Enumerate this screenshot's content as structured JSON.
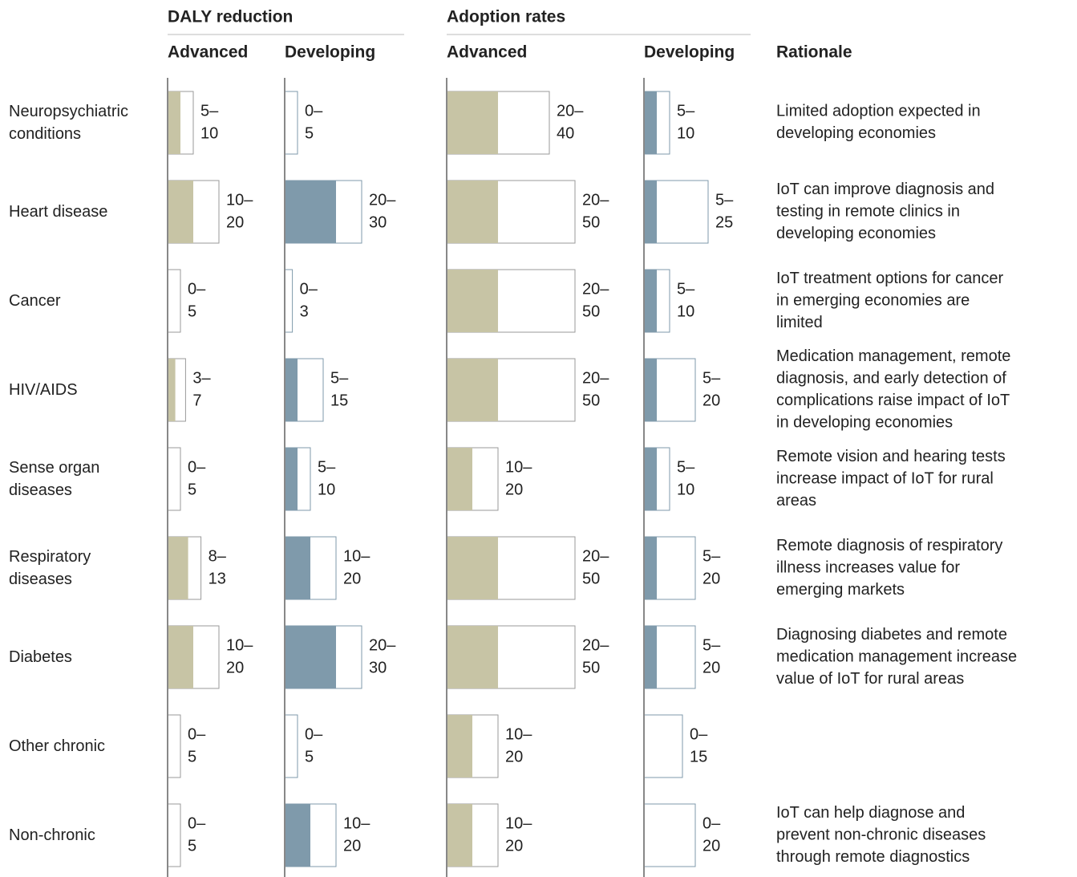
{
  "chart_data": {
    "type": "range-bar",
    "categories": [
      "Neuropsychiatric conditions",
      "Heart disease",
      "Cancer",
      "HIV/AIDS",
      "Sense organ diseases",
      "Respiratory diseases",
      "Diabetes",
      "Other chronic",
      "Non-chronic"
    ],
    "groups": [
      {
        "name": "DALY reduction",
        "series": [
          {
            "name": "Advanced",
            "color": "#c7c4a5",
            "outline": "#9a9a9a",
            "low": [
              5,
              10,
              0,
              3,
              0,
              8,
              10,
              0,
              0
            ],
            "high": [
              10,
              20,
              5,
              7,
              5,
              13,
              20,
              5,
              5
            ],
            "low_labels": [
              "5–",
              "10–",
              "0–",
              "3–",
              "0–",
              "8–",
              "10–",
              "0–",
              "0–"
            ]
          },
          {
            "name": "Developing",
            "color": "#7f9aab",
            "outline": "#7f9aab",
            "low": [
              0,
              20,
              0,
              5,
              5,
              10,
              20,
              0,
              10
            ],
            "high": [
              5,
              30,
              3,
              15,
              10,
              20,
              30,
              5,
              20
            ],
            "low_labels": [
              "0–",
              "20–",
              "0–",
              "5–",
              "5–",
              "10–",
              "20–",
              "0–",
              "10–"
            ]
          }
        ]
      },
      {
        "name": "Adoption rates",
        "series": [
          {
            "name": "Advanced",
            "color": "#c7c4a5",
            "outline": "#9a9a9a",
            "low": [
              20,
              20,
              20,
              20,
              10,
              20,
              20,
              10,
              10
            ],
            "high": [
              40,
              50,
              50,
              50,
              20,
              50,
              50,
              20,
              20
            ],
            "low_labels": [
              "20–",
              "20–",
              "20–",
              "20–",
              "10–",
              "20–",
              "20–",
              "10–",
              "10–"
            ]
          },
          {
            "name": "Developing",
            "color": "#7f9aab",
            "outline": "#7f9aab",
            "low": [
              5,
              5,
              5,
              5,
              5,
              5,
              5,
              0,
              0
            ],
            "high": [
              10,
              25,
              10,
              20,
              10,
              20,
              20,
              15,
              20
            ],
            "low_labels": [
              "5–",
              "5–",
              "5–",
              "5–",
              "5–",
              "5–",
              "5–",
              "0–",
              "0–"
            ]
          }
        ]
      }
    ],
    "rationale_title": "Rationale",
    "rationale": [
      [
        "Limited adoption expected in",
        "developing economies"
      ],
      [
        "IoT can improve diagnosis and",
        "testing in remote clinics in",
        "developing economies"
      ],
      [
        "IoT treatment options for cancer",
        "in emerging economies are",
        "limited"
      ],
      [
        "Medication management, remote",
        "diagnosis, and early detection of",
        "complications raise impact of IoT",
        "in developing economies"
      ],
      [
        "Remote vision and hearing tests",
        "increase impact of IoT for rural",
        "areas"
      ],
      [
        "Remote diagnosis of respiratory",
        "illness increases value for",
        "emerging markets"
      ],
      [
        "Diagnosing diabetes and remote",
        "medication management increase",
        "value of IoT for rural areas"
      ],
      null,
      [
        "IoT can help diagnose and",
        "prevent non-chronic diseases",
        "through remote diagnostics"
      ]
    ]
  }
}
